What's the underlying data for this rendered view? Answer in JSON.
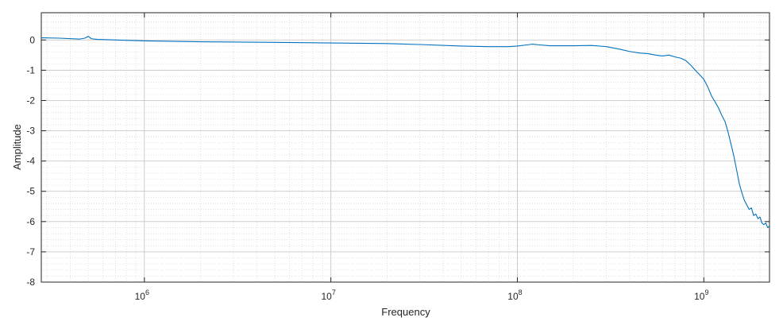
{
  "chart_data": {
    "type": "line",
    "xlabel": "Frequency",
    "ylabel": "Amplitude",
    "xscale": "log",
    "xlim": [
      280000,
      2250000000
    ],
    "ylim": [
      -8,
      0.9
    ],
    "x_ticks": [
      {
        "value": 1000000,
        "base": "10",
        "exp": "6"
      },
      {
        "value": 10000000,
        "base": "10",
        "exp": "7"
      },
      {
        "value": 100000000,
        "base": "10",
        "exp": "8"
      },
      {
        "value": 1000000000,
        "base": "10",
        "exp": "9"
      }
    ],
    "y_ticks": [
      "0",
      "-1",
      "-2",
      "-3",
      "-4",
      "-5",
      "-6",
      "-7",
      "-8"
    ],
    "grid": true,
    "minor_grid": true,
    "series": [
      {
        "color": "#0072BD",
        "x": [
          280000,
          350000,
          450000,
          480000,
          500000,
          520000,
          560000,
          700000,
          1000000,
          2000000,
          5000000,
          10000000,
          20000000,
          30000000,
          50000000,
          70000000,
          90000000,
          100000000,
          110000000,
          120000000,
          130000000,
          150000000,
          200000000,
          250000000,
          300000000,
          350000000,
          400000000,
          450000000,
          500000000,
          550000000,
          600000000,
          650000000,
          700000000,
          750000000,
          800000000,
          850000000,
          900000000,
          950000000,
          1000000000,
          1050000000,
          1100000000,
          1150000000,
          1200000000,
          1250000000,
          1300000000,
          1350000000,
          1400000000,
          1450000000,
          1500000000,
          1550000000,
          1600000000,
          1650000000,
          1700000000,
          1750000000,
          1800000000,
          1850000000,
          1900000000,
          1950000000,
          2000000000,
          2050000000,
          2100000000,
          2150000000,
          2200000000,
          2250000000
        ],
        "y": [
          0.07,
          0.06,
          0.03,
          0.06,
          0.12,
          0.04,
          0.02,
          0.0,
          -0.03,
          -0.06,
          -0.08,
          -0.1,
          -0.12,
          -0.15,
          -0.2,
          -0.22,
          -0.22,
          -0.2,
          -0.17,
          -0.14,
          -0.16,
          -0.19,
          -0.19,
          -0.18,
          -0.22,
          -0.3,
          -0.38,
          -0.43,
          -0.45,
          -0.5,
          -0.53,
          -0.5,
          -0.56,
          -0.6,
          -0.68,
          -0.83,
          -1.0,
          -1.15,
          -1.3,
          -1.55,
          -1.85,
          -2.05,
          -2.25,
          -2.5,
          -2.7,
          -3.05,
          -3.45,
          -3.85,
          -4.3,
          -4.75,
          -5.05,
          -5.3,
          -5.45,
          -5.6,
          -5.55,
          -5.8,
          -5.75,
          -5.9,
          -5.85,
          -6.05,
          -6.1,
          -6.05,
          -6.2,
          -6.15
        ]
      }
    ]
  }
}
